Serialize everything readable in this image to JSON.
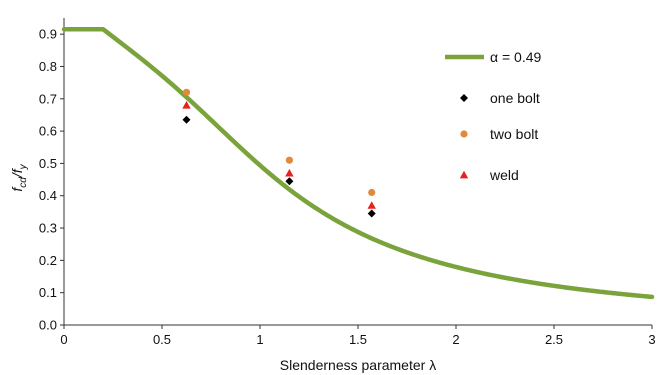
{
  "chart_data": {
    "type": "line",
    "title": "",
    "xlabel": "Slenderness parameter λ",
    "ylabel": {
      "main_f": "f",
      "sub_cd": "cd",
      "slash_f": "/f",
      "sub_y": "y"
    },
    "xlim": [
      0,
      3
    ],
    "ylim": [
      0,
      0.95
    ],
    "x_ticks": [
      0,
      0.5,
      1,
      1.5,
      2,
      2.5,
      3
    ],
    "x_tick_labels": [
      "0",
      "0.5",
      "1",
      "1.5",
      "2",
      "2.5",
      "3"
    ],
    "y_ticks": [
      0.0,
      0.1,
      0.2,
      0.3,
      0.4,
      0.5,
      0.6,
      0.7,
      0.8,
      0.9
    ],
    "y_tick_labels": [
      "0.0",
      "0.1",
      "0.2",
      "0.3",
      "0.4",
      "0.5",
      "0.6",
      "0.7",
      "0.8",
      "0.9"
    ],
    "grid": false,
    "legend_position": "top-right",
    "curve": {
      "name": "α = 0.49",
      "color": "#7aa33c",
      "alpha": 0.49,
      "lambda_0": 0.2,
      "plateau": 0.915,
      "x_range": [
        0,
        3
      ]
    },
    "series": [
      {
        "name": "one bolt",
        "marker": "diamond",
        "color": "#000000",
        "x": [
          0.625,
          1.15,
          1.57
        ],
        "y": [
          0.635,
          0.445,
          0.345
        ]
      },
      {
        "name": "two bolt",
        "marker": "circle",
        "color": "#e08a3c",
        "x": [
          0.625,
          1.15,
          1.57
        ],
        "y": [
          0.72,
          0.51,
          0.41
        ]
      },
      {
        "name": "weld",
        "marker": "triangle",
        "color": "#e8211c",
        "x": [
          0.625,
          1.15,
          1.57
        ],
        "y": [
          0.68,
          0.47,
          0.37
        ]
      }
    ]
  }
}
